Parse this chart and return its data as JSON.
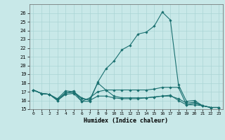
{
  "xlabel": "Humidex (Indice chaleur)",
  "ylabel": "",
  "background_color": "#c8e8e8",
  "grid_color": "#aad4d4",
  "line_color": "#1a7070",
  "xlim": [
    -0.5,
    23.5
  ],
  "ylim": [
    15,
    27
  ],
  "yticks": [
    15,
    16,
    17,
    18,
    19,
    20,
    21,
    22,
    23,
    24,
    25,
    26
  ],
  "xticks": [
    0,
    1,
    2,
    3,
    4,
    5,
    6,
    7,
    8,
    9,
    10,
    11,
    12,
    13,
    14,
    15,
    16,
    17,
    18,
    19,
    20,
    21,
    22,
    23
  ],
  "series": [
    [
      17.2,
      16.8,
      16.7,
      16.0,
      16.8,
      17.1,
      15.9,
      15.9,
      18.1,
      19.6,
      20.5,
      21.8,
      22.3,
      23.6,
      23.8,
      24.5,
      26.1,
      25.2,
      17.8,
      15.9,
      16.0,
      15.4,
      15.2,
      15.2
    ],
    [
      17.2,
      16.8,
      16.7,
      16.0,
      16.7,
      16.8,
      15.9,
      16.3,
      17.0,
      17.2,
      17.2,
      17.2,
      17.2,
      17.2,
      17.2,
      17.3,
      17.5,
      17.5,
      17.5,
      15.5,
      15.5,
      15.4,
      15.2,
      15.2
    ],
    [
      17.2,
      16.8,
      16.7,
      16.1,
      16.9,
      16.9,
      16.2,
      16.1,
      18.0,
      17.2,
      16.5,
      16.3,
      16.3,
      16.3,
      16.3,
      16.4,
      16.5,
      16.5,
      16.2,
      15.7,
      15.8,
      15.4,
      15.2,
      15.2
    ],
    [
      17.2,
      16.8,
      16.7,
      16.2,
      17.1,
      17.0,
      16.3,
      16.0,
      16.5,
      16.5,
      16.3,
      16.2,
      16.2,
      16.2,
      16.3,
      16.4,
      16.5,
      16.6,
      16.0,
      15.5,
      15.7,
      15.4,
      15.2,
      15.2
    ]
  ]
}
